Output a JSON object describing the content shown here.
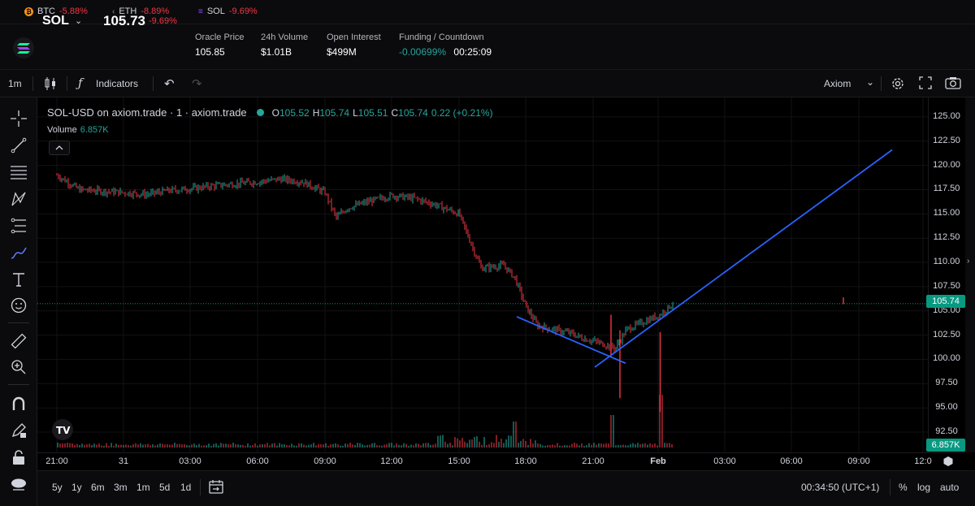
{
  "tickers": [
    {
      "symbol": "BTC",
      "change": "-5.88%",
      "icon": "bitcoin-icon",
      "color": "#f7931a"
    },
    {
      "symbol": "ETH",
      "change": "-8.89%",
      "icon": "ethereum-icon",
      "color": "#8c8c9c"
    },
    {
      "symbol": "SOL",
      "change": "-9.69%",
      "icon": "solana-icon",
      "color": "#9945ff"
    }
  ],
  "market": {
    "symbol": "SOL",
    "price": "105.73",
    "change": "-9.69%",
    "stats": [
      {
        "label": "Oracle Price",
        "value": "105.85"
      },
      {
        "label": "24h Volume",
        "value": "$1.01B"
      },
      {
        "label": "Open Interest",
        "value": "$499M"
      },
      {
        "label": "Funding / Countdown",
        "value": "-0.00699%",
        "value2": "00:25:09"
      }
    ]
  },
  "toolbar": {
    "interval": "1m",
    "indicators_label": "Indicators",
    "layout_name": "Axiom"
  },
  "legend": {
    "title": "SOL-USD on axiom.trade · 1 · axiom.trade",
    "open_k": "O",
    "open": "105.52",
    "high_k": "H",
    "high": "105.74",
    "low_k": "L",
    "low": "105.51",
    "close_k": "C",
    "close": "105.74",
    "change": "0.22 (+0.21%)",
    "volume_label": "Volume",
    "volume_value": "6.857K"
  },
  "price_axis": {
    "ticks": [
      "125.00",
      "122.50",
      "120.00",
      "117.50",
      "115.00",
      "112.50",
      "110.00",
      "107.50",
      "105.00",
      "102.50",
      "100.00",
      "97.50",
      "95.00",
      "92.50"
    ],
    "current_price": "105.74",
    "current_volume": "6.857K"
  },
  "time_axis": {
    "ticks": [
      "21:00",
      "31",
      "03:00",
      "06:00",
      "09:00",
      "12:00",
      "15:00",
      "18:00",
      "21:00",
      "Feb",
      "03:00",
      "06:00",
      "09:00",
      "12:0"
    ]
  },
  "bottom_bar": {
    "ranges": [
      "5y",
      "1y",
      "6m",
      "3m",
      "1m",
      "5d",
      "1d"
    ],
    "clock": "00:34:50 (UTC+1)",
    "percent_label": "%",
    "log_label": "log",
    "auto_label": "auto"
  },
  "colors": {
    "up": "#26a69a",
    "down": "#f23645",
    "trendline": "#2962ff",
    "price_badge": "#089981"
  },
  "chart_data": {
    "type": "candlestick",
    "symbol": "SOL-USD",
    "interval": "1",
    "y_range": [
      91.5,
      126.5
    ],
    "price_path": [
      [
        "21:00",
        119.0
      ],
      [
        "22:00",
        117.5
      ],
      [
        "31 00:00",
        117.2
      ],
      [
        "01:00",
        117.0
      ],
      [
        "02:00",
        117.4
      ],
      [
        "03:00",
        117.6
      ],
      [
        "04:00",
        117.9
      ],
      [
        "05:00",
        118.1
      ],
      [
        "06:00",
        118.3
      ],
      [
        "07:00",
        118.6
      ],
      [
        "08:00",
        118.3
      ],
      [
        "09:00",
        117.2
      ],
      [
        "09:30",
        114.6
      ],
      [
        "10:00",
        115.6
      ],
      [
        "11:00",
        116.3
      ],
      [
        "12:00",
        116.9
      ],
      [
        "13:00",
        116.6
      ],
      [
        "14:00",
        115.9
      ],
      [
        "15:00",
        115.0
      ],
      [
        "15:40",
        111.2
      ],
      [
        "16:00",
        109.4
      ],
      [
        "17:00",
        109.7
      ],
      [
        "17:30",
        108.4
      ],
      [
        "18:00",
        105.4
      ],
      [
        "18:30",
        103.5
      ],
      [
        "19:00",
        103.2
      ],
      [
        "20:00",
        102.7
      ],
      [
        "20:30",
        102.2
      ],
      [
        "21:00",
        101.9
      ],
      [
        "22:00",
        101.2
      ],
      [
        "22:30",
        103.1
      ],
      [
        "23:00",
        103.6
      ],
      [
        "Feb 00:00",
        104.6
      ],
      [
        "00:34",
        105.74
      ]
    ],
    "trendlines": [
      {
        "from": [
          "18:00",
          104.4
        ],
        "to": [
          "22:30",
          99.6
        ]
      },
      {
        "from": [
          "21:30",
          99.2
        ],
        "to": [
          "10:30",
          121.6
        ]
      }
    ]
  }
}
